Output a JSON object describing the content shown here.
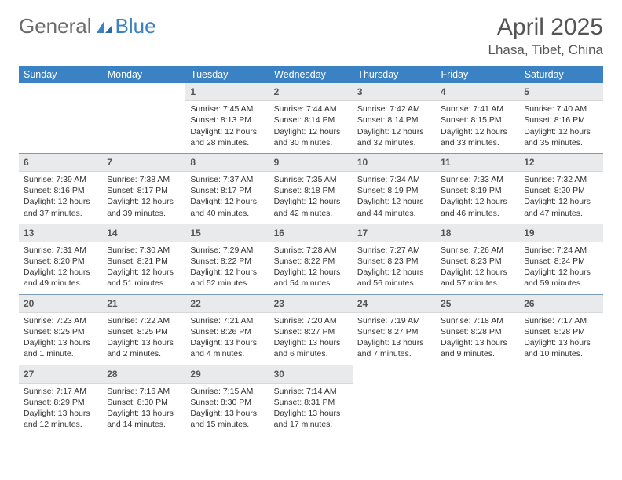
{
  "logo": {
    "word1": "General",
    "word2": "Blue"
  },
  "header": {
    "title": "April 2025",
    "location": "Lhasa, Tibet, China"
  },
  "colors": {
    "accent": "#3b82c4",
    "daynum_bg": "#e9eaec",
    "row_border": "#7a9bb5"
  },
  "weekdays": [
    "Sunday",
    "Monday",
    "Tuesday",
    "Wednesday",
    "Thursday",
    "Friday",
    "Saturday"
  ],
  "weeks": [
    [
      null,
      null,
      {
        "n": "1",
        "sr": "7:45 AM",
        "ss": "8:13 PM",
        "dl": "12 hours and 28 minutes."
      },
      {
        "n": "2",
        "sr": "7:44 AM",
        "ss": "8:14 PM",
        "dl": "12 hours and 30 minutes."
      },
      {
        "n": "3",
        "sr": "7:42 AM",
        "ss": "8:14 PM",
        "dl": "12 hours and 32 minutes."
      },
      {
        "n": "4",
        "sr": "7:41 AM",
        "ss": "8:15 PM",
        "dl": "12 hours and 33 minutes."
      },
      {
        "n": "5",
        "sr": "7:40 AM",
        "ss": "8:16 PM",
        "dl": "12 hours and 35 minutes."
      }
    ],
    [
      {
        "n": "6",
        "sr": "7:39 AM",
        "ss": "8:16 PM",
        "dl": "12 hours and 37 minutes."
      },
      {
        "n": "7",
        "sr": "7:38 AM",
        "ss": "8:17 PM",
        "dl": "12 hours and 39 minutes."
      },
      {
        "n": "8",
        "sr": "7:37 AM",
        "ss": "8:17 PM",
        "dl": "12 hours and 40 minutes."
      },
      {
        "n": "9",
        "sr": "7:35 AM",
        "ss": "8:18 PM",
        "dl": "12 hours and 42 minutes."
      },
      {
        "n": "10",
        "sr": "7:34 AM",
        "ss": "8:19 PM",
        "dl": "12 hours and 44 minutes."
      },
      {
        "n": "11",
        "sr": "7:33 AM",
        "ss": "8:19 PM",
        "dl": "12 hours and 46 minutes."
      },
      {
        "n": "12",
        "sr": "7:32 AM",
        "ss": "8:20 PM",
        "dl": "12 hours and 47 minutes."
      }
    ],
    [
      {
        "n": "13",
        "sr": "7:31 AM",
        "ss": "8:20 PM",
        "dl": "12 hours and 49 minutes."
      },
      {
        "n": "14",
        "sr": "7:30 AM",
        "ss": "8:21 PM",
        "dl": "12 hours and 51 minutes."
      },
      {
        "n": "15",
        "sr": "7:29 AM",
        "ss": "8:22 PM",
        "dl": "12 hours and 52 minutes."
      },
      {
        "n": "16",
        "sr": "7:28 AM",
        "ss": "8:22 PM",
        "dl": "12 hours and 54 minutes."
      },
      {
        "n": "17",
        "sr": "7:27 AM",
        "ss": "8:23 PM",
        "dl": "12 hours and 56 minutes."
      },
      {
        "n": "18",
        "sr": "7:26 AM",
        "ss": "8:23 PM",
        "dl": "12 hours and 57 minutes."
      },
      {
        "n": "19",
        "sr": "7:24 AM",
        "ss": "8:24 PM",
        "dl": "12 hours and 59 minutes."
      }
    ],
    [
      {
        "n": "20",
        "sr": "7:23 AM",
        "ss": "8:25 PM",
        "dl": "13 hours and 1 minute."
      },
      {
        "n": "21",
        "sr": "7:22 AM",
        "ss": "8:25 PM",
        "dl": "13 hours and 2 minutes."
      },
      {
        "n": "22",
        "sr": "7:21 AM",
        "ss": "8:26 PM",
        "dl": "13 hours and 4 minutes."
      },
      {
        "n": "23",
        "sr": "7:20 AM",
        "ss": "8:27 PM",
        "dl": "13 hours and 6 minutes."
      },
      {
        "n": "24",
        "sr": "7:19 AM",
        "ss": "8:27 PM",
        "dl": "13 hours and 7 minutes."
      },
      {
        "n": "25",
        "sr": "7:18 AM",
        "ss": "8:28 PM",
        "dl": "13 hours and 9 minutes."
      },
      {
        "n": "26",
        "sr": "7:17 AM",
        "ss": "8:28 PM",
        "dl": "13 hours and 10 minutes."
      }
    ],
    [
      {
        "n": "27",
        "sr": "7:17 AM",
        "ss": "8:29 PM",
        "dl": "13 hours and 12 minutes."
      },
      {
        "n": "28",
        "sr": "7:16 AM",
        "ss": "8:30 PM",
        "dl": "13 hours and 14 minutes."
      },
      {
        "n": "29",
        "sr": "7:15 AM",
        "ss": "8:30 PM",
        "dl": "13 hours and 15 minutes."
      },
      {
        "n": "30",
        "sr": "7:14 AM",
        "ss": "8:31 PM",
        "dl": "13 hours and 17 minutes."
      },
      null,
      null,
      null
    ]
  ],
  "labels": {
    "sunrise": "Sunrise:",
    "sunset": "Sunset:",
    "daylight": "Daylight:"
  }
}
